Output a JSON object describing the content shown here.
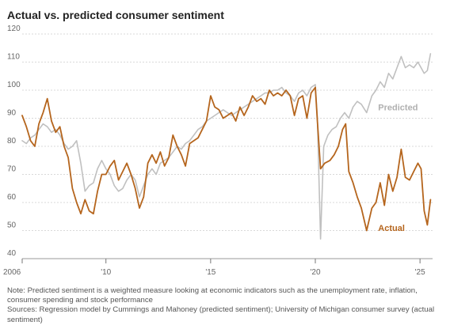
{
  "title": "Actual vs. predicted consumer sentiment",
  "note": "Note: Predicted sentiment is a weighted measure looking at economic indicators such as the unemployment rate, inflation, consumer spending and stock performance",
  "sources": "Sources: Regression model by Cummings and Mahoney (predicted sentiment); University of Michigan consumer survey (actual sentiment)",
  "colors": {
    "actual": "#b5651d",
    "predicted": "#c0c0c0",
    "actual_label": "#b5651d",
    "predicted_label": "#b0b0b0"
  },
  "chart_data": {
    "type": "line",
    "title": "Actual vs. predicted consumer sentiment",
    "xlabel": "",
    "ylabel": "",
    "xlim": [
      2006,
      2025.6
    ],
    "ylim": [
      40,
      120
    ],
    "y_ticks": [
      40,
      50,
      60,
      70,
      80,
      90,
      100,
      110,
      120
    ],
    "x_ticks": [
      {
        "value": 2006,
        "label": "2006"
      },
      {
        "value": 2010,
        "label": "'10"
      },
      {
        "value": 2015,
        "label": "'15"
      },
      {
        "value": 2020,
        "label": "'20"
      },
      {
        "value": 2025,
        "label": "'25"
      }
    ],
    "grid": true,
    "legend": "direct labels on lines",
    "series": [
      {
        "name": "Actual",
        "points": [
          [
            2006.0,
            91
          ],
          [
            2006.2,
            87
          ],
          [
            2006.4,
            82
          ],
          [
            2006.6,
            80
          ],
          [
            2006.8,
            88
          ],
          [
            2007.0,
            92
          ],
          [
            2007.2,
            97
          ],
          [
            2007.4,
            89
          ],
          [
            2007.6,
            85
          ],
          [
            2007.8,
            87
          ],
          [
            2008.0,
            80
          ],
          [
            2008.2,
            76
          ],
          [
            2008.4,
            65
          ],
          [
            2008.6,
            60
          ],
          [
            2008.8,
            56
          ],
          [
            2009.0,
            61
          ],
          [
            2009.2,
            57
          ],
          [
            2009.4,
            56
          ],
          [
            2009.6,
            64
          ],
          [
            2009.8,
            70
          ],
          [
            2010.0,
            70
          ],
          [
            2010.2,
            73
          ],
          [
            2010.4,
            75
          ],
          [
            2010.6,
            68
          ],
          [
            2010.8,
            71
          ],
          [
            2011.0,
            74
          ],
          [
            2011.2,
            70
          ],
          [
            2011.4,
            65
          ],
          [
            2011.6,
            58
          ],
          [
            2011.8,
            62
          ],
          [
            2012.0,
            74
          ],
          [
            2012.2,
            77
          ],
          [
            2012.4,
            74
          ],
          [
            2012.6,
            78
          ],
          [
            2012.8,
            73
          ],
          [
            2013.0,
            76
          ],
          [
            2013.2,
            84
          ],
          [
            2013.4,
            80
          ],
          [
            2013.6,
            77
          ],
          [
            2013.8,
            73
          ],
          [
            2014.0,
            81
          ],
          [
            2014.2,
            82
          ],
          [
            2014.4,
            83
          ],
          [
            2014.6,
            86
          ],
          [
            2014.8,
            89
          ],
          [
            2015.0,
            98
          ],
          [
            2015.2,
            94
          ],
          [
            2015.4,
            93
          ],
          [
            2015.6,
            90
          ],
          [
            2015.8,
            91
          ],
          [
            2016.0,
            92
          ],
          [
            2016.2,
            89
          ],
          [
            2016.4,
            94
          ],
          [
            2016.6,
            91
          ],
          [
            2016.8,
            94
          ],
          [
            2017.0,
            98
          ],
          [
            2017.2,
            96
          ],
          [
            2017.4,
            97
          ],
          [
            2017.6,
            95
          ],
          [
            2017.8,
            100
          ],
          [
            2018.0,
            98
          ],
          [
            2018.2,
            99
          ],
          [
            2018.4,
            98
          ],
          [
            2018.6,
            100
          ],
          [
            2018.8,
            98
          ],
          [
            2019.0,
            91
          ],
          [
            2019.2,
            97
          ],
          [
            2019.4,
            98
          ],
          [
            2019.6,
            90
          ],
          [
            2019.8,
            99
          ],
          [
            2020.0,
            101
          ],
          [
            2020.1,
            89
          ],
          [
            2020.25,
            72
          ],
          [
            2020.45,
            74
          ],
          [
            2020.7,
            75
          ],
          [
            2020.9,
            77
          ],
          [
            2021.1,
            80
          ],
          [
            2021.3,
            86
          ],
          [
            2021.45,
            88
          ],
          [
            2021.6,
            71
          ],
          [
            2021.8,
            67
          ],
          [
            2022.0,
            62
          ],
          [
            2022.2,
            58
          ],
          [
            2022.45,
            50
          ],
          [
            2022.7,
            58
          ],
          [
            2022.9,
            60
          ],
          [
            2023.1,
            67
          ],
          [
            2023.3,
            59
          ],
          [
            2023.5,
            70
          ],
          [
            2023.7,
            64
          ],
          [
            2023.9,
            69
          ],
          [
            2024.1,
            79
          ],
          [
            2024.3,
            69
          ],
          [
            2024.5,
            68
          ],
          [
            2024.7,
            71
          ],
          [
            2024.9,
            74
          ],
          [
            2025.05,
            72
          ],
          [
            2025.2,
            57
          ],
          [
            2025.35,
            52
          ],
          [
            2025.5,
            61
          ]
        ]
      },
      {
        "name": "Predicted",
        "points": [
          [
            2006.0,
            82
          ],
          [
            2006.2,
            81
          ],
          [
            2006.4,
            83
          ],
          [
            2006.6,
            84
          ],
          [
            2006.8,
            86
          ],
          [
            2007.0,
            88
          ],
          [
            2007.2,
            87
          ],
          [
            2007.4,
            85
          ],
          [
            2007.6,
            86
          ],
          [
            2007.8,
            84
          ],
          [
            2008.0,
            81
          ],
          [
            2008.2,
            79
          ],
          [
            2008.4,
            80
          ],
          [
            2008.6,
            82
          ],
          [
            2008.8,
            74
          ],
          [
            2009.0,
            64
          ],
          [
            2009.2,
            66
          ],
          [
            2009.4,
            67
          ],
          [
            2009.6,
            72
          ],
          [
            2009.8,
            75
          ],
          [
            2010.0,
            72
          ],
          [
            2010.2,
            70
          ],
          [
            2010.4,
            66
          ],
          [
            2010.6,
            64
          ],
          [
            2010.8,
            65
          ],
          [
            2011.0,
            68
          ],
          [
            2011.2,
            70
          ],
          [
            2011.4,
            68
          ],
          [
            2011.6,
            62
          ],
          [
            2011.8,
            66
          ],
          [
            2012.0,
            70
          ],
          [
            2012.2,
            72
          ],
          [
            2012.4,
            70
          ],
          [
            2012.6,
            74
          ],
          [
            2012.8,
            75
          ],
          [
            2013.0,
            76
          ],
          [
            2013.2,
            78
          ],
          [
            2013.4,
            80
          ],
          [
            2013.6,
            79
          ],
          [
            2013.8,
            81
          ],
          [
            2014.0,
            82
          ],
          [
            2014.2,
            84
          ],
          [
            2014.4,
            86
          ],
          [
            2014.6,
            87
          ],
          [
            2014.8,
            89
          ],
          [
            2015.0,
            90
          ],
          [
            2015.2,
            91
          ],
          [
            2015.4,
            92
          ],
          [
            2015.6,
            93
          ],
          [
            2015.8,
            92
          ],
          [
            2016.0,
            91
          ],
          [
            2016.2,
            92
          ],
          [
            2016.4,
            93
          ],
          [
            2016.6,
            94
          ],
          [
            2016.8,
            95
          ],
          [
            2017.0,
            96
          ],
          [
            2017.2,
            97
          ],
          [
            2017.4,
            98
          ],
          [
            2017.6,
            99
          ],
          [
            2017.8,
            99
          ],
          [
            2018.0,
            100
          ],
          [
            2018.2,
            100
          ],
          [
            2018.4,
            101
          ],
          [
            2018.6,
            99
          ],
          [
            2018.8,
            98
          ],
          [
            2019.0,
            96
          ],
          [
            2019.2,
            99
          ],
          [
            2019.4,
            100
          ],
          [
            2019.6,
            98
          ],
          [
            2019.8,
            101
          ],
          [
            2020.0,
            102
          ],
          [
            2020.1,
            90
          ],
          [
            2020.25,
            47
          ],
          [
            2020.4,
            80
          ],
          [
            2020.6,
            84
          ],
          [
            2020.8,
            86
          ],
          [
            2021.0,
            87
          ],
          [
            2021.2,
            90
          ],
          [
            2021.4,
            92
          ],
          [
            2021.6,
            90
          ],
          [
            2021.8,
            94
          ],
          [
            2022.0,
            96
          ],
          [
            2022.2,
            95
          ],
          [
            2022.45,
            92
          ],
          [
            2022.7,
            98
          ],
          [
            2022.9,
            100
          ],
          [
            2023.1,
            103
          ],
          [
            2023.3,
            101
          ],
          [
            2023.5,
            106
          ],
          [
            2023.7,
            104
          ],
          [
            2023.9,
            108
          ],
          [
            2024.1,
            112
          ],
          [
            2024.3,
            108
          ],
          [
            2024.5,
            109
          ],
          [
            2024.7,
            108
          ],
          [
            2024.9,
            110
          ],
          [
            2025.05,
            108
          ],
          [
            2025.2,
            106
          ],
          [
            2025.35,
            107
          ],
          [
            2025.5,
            113
          ]
        ]
      }
    ],
    "annotations": [
      {
        "text": "Predicted",
        "series": "Predicted",
        "near_x": 2023.0,
        "near_y": 94
      },
      {
        "text": "Actual",
        "series": "Actual",
        "near_x": 2023.0,
        "near_y": 51
      }
    ]
  }
}
